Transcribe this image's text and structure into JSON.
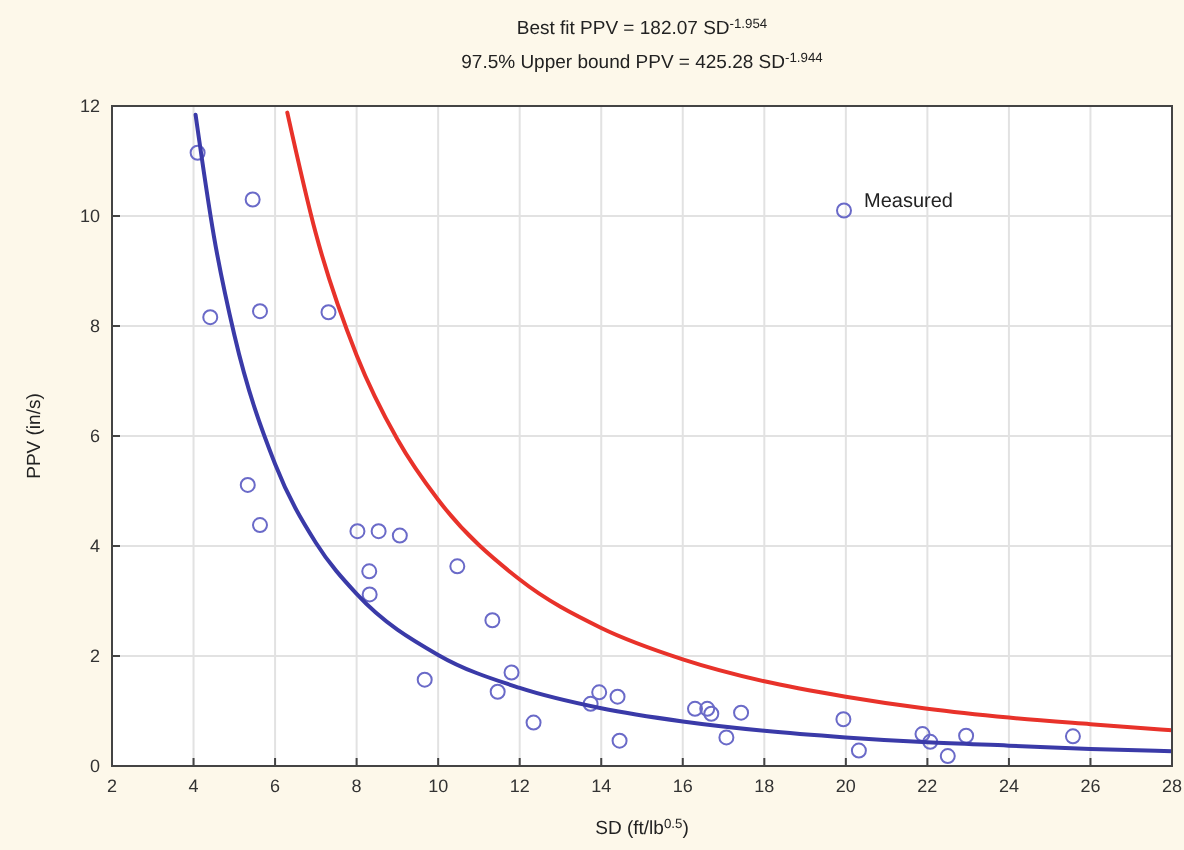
{
  "chart_data": {
    "type": "scatter",
    "title": "Best fit PPV = 182.07 SD$^{-1.954}$",
    "subtitle": "97.5% Upper bound PPV = 425.28 SD$^{-1.944}$",
    "xlabel": "SD (ft/lb$^{0.5}$)",
    "ylabel": "PPV (in/s)",
    "xlim": [
      2,
      28
    ],
    "xticks": [
      2,
      4,
      6,
      8,
      10,
      12,
      14,
      16,
      18,
      20,
      22,
      24,
      26,
      28
    ],
    "ylim": [
      0,
      12
    ],
    "yticks": [
      0,
      2,
      4,
      6,
      8,
      10,
      12
    ],
    "grid": true,
    "legend": "top right",
    "marker": "circle",
    "series": [
      {
        "name": "Measured",
        "color": "#6a6ac8",
        "x": [
          4.1,
          5.45,
          4.41,
          5.63,
          7.31,
          5.33,
          5.63,
          8.02,
          8.54,
          9.06,
          8.31,
          8.32,
          10.47,
          11.33,
          9.67,
          11.46,
          11.8,
          12.34,
          13.74,
          13.95,
          14.4,
          14.45,
          16.3,
          16.6,
          16.7,
          17.43,
          17.07,
          19.94,
          20.32,
          21.88,
          22.07,
          22.5,
          22.95,
          25.57
        ],
        "values": [
          11.15,
          10.3,
          8.16,
          8.27,
          8.25,
          5.11,
          4.38,
          4.27,
          4.27,
          4.19,
          3.54,
          3.12,
          3.63,
          2.65,
          1.57,
          1.35,
          1.7,
          0.79,
          1.13,
          1.34,
          1.26,
          0.46,
          1.04,
          1.04,
          0.95,
          0.97,
          0.52,
          0.85,
          0.28,
          0.58,
          0.44,
          0.18,
          0.55,
          0.54
        ]
      },
      {
        "type": "line",
        "color": "#3a3aa8",
        "marker": "none",
        "line_style": "solid",
        "x": [
          4.05,
          4.5,
          5,
          6,
          7,
          8,
          10,
          12,
          14,
          16,
          18,
          20,
          22,
          24,
          26,
          28
        ],
        "values": [
          11.84,
          9.63,
          7.84,
          5.49,
          4.06,
          3.13,
          2.02,
          1.42,
          1.05,
          0.81,
          0.64,
          0.52,
          0.43,
          0.37,
          0.31,
          0.27
        ]
      },
      {
        "type": "line",
        "color": "#e8322a",
        "marker": "none",
        "line_style": "solid",
        "x": [
          6.3,
          7,
          8,
          9,
          10,
          12,
          14,
          16,
          18,
          20,
          22,
          24,
          26,
          28
        ],
        "values": [
          11.88,
          9.68,
          7.47,
          5.94,
          4.84,
          3.39,
          2.51,
          1.94,
          1.54,
          1.26,
          1.04,
          0.88,
          0.76,
          0.65
        ]
      }
    ]
  }
}
